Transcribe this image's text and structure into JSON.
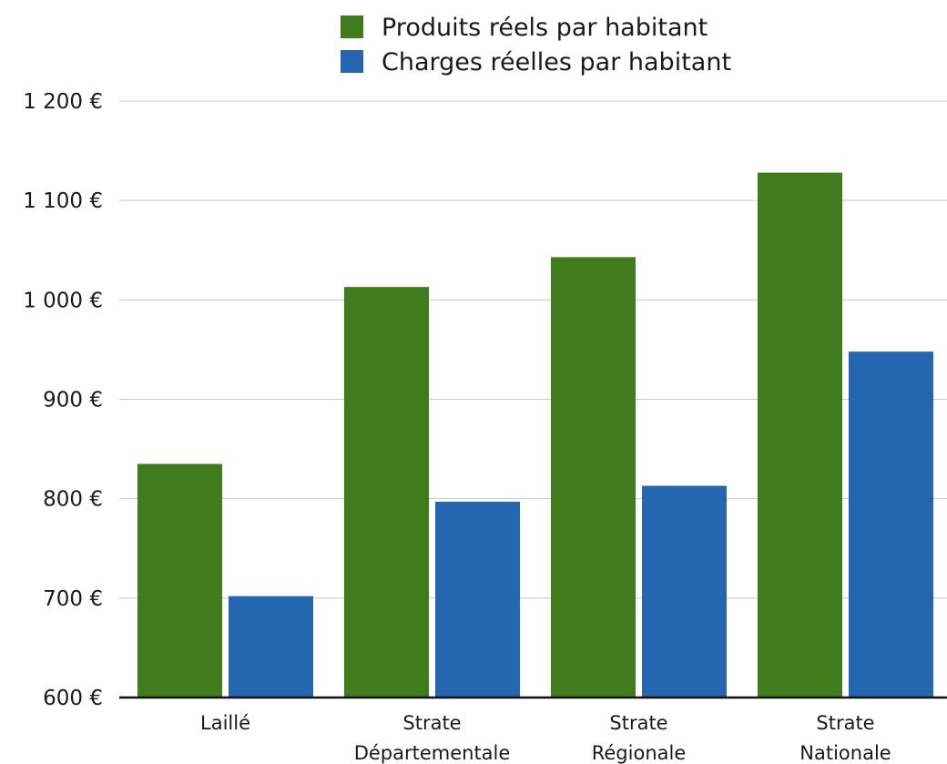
{
  "chart_data": {
    "type": "bar",
    "categories": [
      [
        "Laillé"
      ],
      [
        "Strate",
        "Départementale"
      ],
      [
        "Strate",
        "Régionale"
      ],
      [
        "Strate",
        "Nationale"
      ]
    ],
    "series": [
      {
        "name": "Produits réels par habitant",
        "color": "#3f7d1c",
        "values": [
          835,
          1013,
          1043,
          1128
        ]
      },
      {
        "name": "Charges réelles par habitant",
        "color": "#2566b0",
        "values": [
          702,
          797,
          813,
          948
        ]
      }
    ],
    "ylim": [
      600,
      1200
    ],
    "yticks": [
      {
        "value": 600,
        "label": "600 €"
      },
      {
        "value": 700,
        "label": "700 €"
      },
      {
        "value": 800,
        "label": "800 €"
      },
      {
        "value": 900,
        "label": "900 €"
      },
      {
        "value": 1000,
        "label": "1 000 €"
      },
      {
        "value": 1100,
        "label": "1 100 €"
      },
      {
        "value": 1200,
        "label": "1 200 €"
      }
    ],
    "grid": true,
    "legend_position": "top-center",
    "title": "",
    "xlabel": "",
    "ylabel": ""
  }
}
